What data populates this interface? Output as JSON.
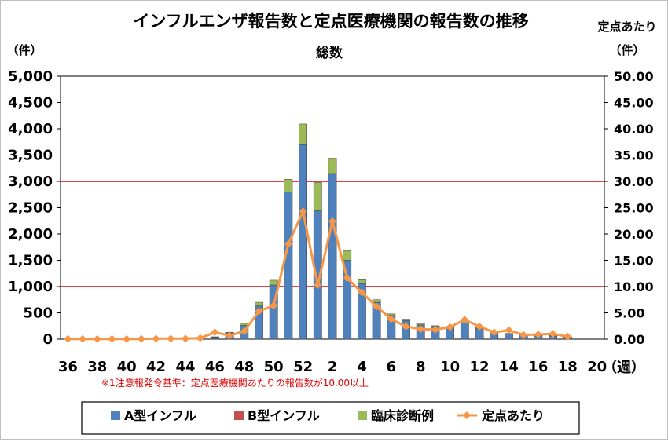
{
  "chart_data": {
    "type": "bar",
    "title": "インフルエンザ報告数と定点医療機関の報告数の推移",
    "subtitle": "総数",
    "ylabel": "（件）",
    "y2label_top": "定点あたり",
    "y2label": "（件）",
    "xunit": "（週）",
    "note": "※1注意報発令基準：定点医療機関あたりの報告数が10.00以上",
    "ylim": [
      0,
      5000
    ],
    "y2lim": [
      0,
      50
    ],
    "yticks": [
      "0",
      "500",
      "1,000",
      "1,500",
      "2,000",
      "2,500",
      "3,000",
      "3,500",
      "4,000",
      "4,500",
      "5,000"
    ],
    "y2ticks": [
      "0.00",
      "5.00",
      "10.00",
      "15.00",
      "20.00",
      "25.00",
      "30.00",
      "35.00",
      "40.00",
      "45.00",
      "50.00"
    ],
    "xticks": [
      "36",
      "38",
      "40",
      "42",
      "44",
      "46",
      "48",
      "50",
      "52",
      "2",
      "4",
      "6",
      "8",
      "10",
      "12",
      "14",
      "16",
      "18",
      "20"
    ],
    "categories": [
      "36",
      "37",
      "38",
      "39",
      "40",
      "41",
      "42",
      "43",
      "44",
      "45",
      "46",
      "47",
      "48",
      "49",
      "50",
      "51",
      "52",
      "1",
      "2",
      "3",
      "4",
      "5",
      "6",
      "7",
      "8",
      "9",
      "10",
      "11",
      "12",
      "13",
      "14",
      "15",
      "16",
      "17",
      "18",
      "19",
      "20"
    ],
    "threshold_lines": [
      {
        "axis": "y2",
        "value": 10,
        "color": "#e00000"
      },
      {
        "axis": "y2",
        "value": 30,
        "color": "#e00000"
      }
    ],
    "series": [
      {
        "name": "A型インフル",
        "kind": "bar",
        "color": "#4f81bd",
        "values": [
          5,
          3,
          3,
          3,
          3,
          5,
          8,
          8,
          10,
          20,
          40,
          120,
          260,
          630,
          1030,
          2800,
          3700,
          2440,
          3150,
          1500,
          1060,
          700,
          450,
          350,
          270,
          240,
          230,
          310,
          200,
          130,
          100,
          80,
          70,
          60,
          40,
          0,
          0
        ]
      },
      {
        "name": "B型インフル",
        "kind": "bar",
        "color": "#c0504d",
        "values": [
          0,
          0,
          0,
          0,
          0,
          0,
          0,
          0,
          0,
          0,
          0,
          0,
          0,
          0,
          0,
          0,
          0,
          0,
          0,
          0,
          0,
          0,
          0,
          0,
          0,
          0,
          0,
          0,
          0,
          0,
          0,
          0,
          0,
          0,
          0,
          0,
          0
        ]
      },
      {
        "name": "臨床診断例",
        "kind": "bar",
        "color": "#9bbb59",
        "values": [
          0,
          0,
          0,
          0,
          0,
          0,
          0,
          0,
          0,
          0,
          5,
          10,
          40,
          70,
          90,
          240,
          390,
          540,
          290,
          180,
          70,
          50,
          30,
          30,
          20,
          15,
          15,
          30,
          20,
          10,
          10,
          10,
          10,
          10,
          5,
          0,
          0
        ]
      },
      {
        "name": "定点あたり",
        "kind": "line",
        "axis": "y2",
        "color": "#f79646",
        "values": [
          0.05,
          0.03,
          0.03,
          0.03,
          0.03,
          0.05,
          0.1,
          0.1,
          0.1,
          0.2,
          1.3,
          0.7,
          1.5,
          5.3,
          6.4,
          18.1,
          24.3,
          10.3,
          22.4,
          11.6,
          8.9,
          6.2,
          3.8,
          2.4,
          1.9,
          1.8,
          2.3,
          3.7,
          2.4,
          1.3,
          1.7,
          0.8,
          0.9,
          1.0,
          0.5,
          null,
          null
        ]
      }
    ],
    "legend": {
      "position": "bottom",
      "entries": [
        "A型インフル",
        "B型インフル",
        "臨床診断例",
        "定点あたり"
      ]
    },
    "grid": false
  }
}
